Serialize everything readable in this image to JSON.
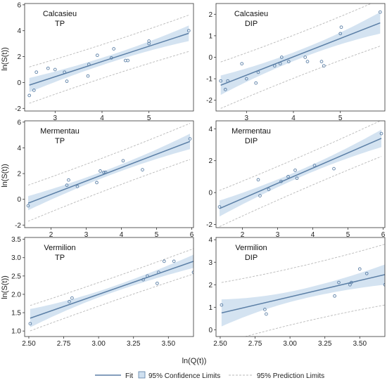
{
  "figure": {
    "shared_ylabel": "ln(S(t))",
    "shared_xlabel": "ln(Q(t))",
    "legend": {
      "placement": "bottom-center",
      "fit_label": "Fit",
      "confidence_label": "95% Confidence Limits",
      "prediction_label": "95% Prediction Limits",
      "colors": {
        "fit": "#5b7fa6",
        "confidence_fill": "#cfe0f0",
        "prediction": "#b8b8b8",
        "marker": "#5b7fa6"
      }
    }
  },
  "chart_data": [
    {
      "type": "scatter",
      "title": "Calcasieu",
      "subtitle": "TP",
      "xlim": [
        2.35,
        5.95
      ],
      "ylim": [
        -2.2,
        6.1
      ],
      "xticks": [
        3,
        4,
        5
      ],
      "yticks": [
        -2,
        0,
        2,
        4,
        6
      ],
      "x": [
        2.45,
        2.55,
        2.6,
        2.85,
        3.0,
        3.2,
        3.25,
        3.7,
        3.72,
        3.9,
        4.2,
        4.25,
        4.5,
        4.55,
        5.0,
        5.0,
        5.85
      ],
      "y": [
        -1.0,
        -0.6,
        0.8,
        1.1,
        1.0,
        0.8,
        0.1,
        0.5,
        1.4,
        2.1,
        1.9,
        2.6,
        1.7,
        1.7,
        3.0,
        3.2,
        4.0
      ],
      "fit": [
        [
          2.45,
          -0.2
        ],
        [
          5.85,
          3.8
        ]
      ],
      "ci_halfwidth": [
        0.55,
        0.28,
        0.6
      ],
      "pi_halfwidth": 1.3
    },
    {
      "type": "scatter",
      "title": "Calcasieu",
      "subtitle": "DIP",
      "xlim": [
        2.35,
        5.95
      ],
      "ylim": [
        -2.5,
        2.5
      ],
      "xticks": [
        3,
        4,
        5
      ],
      "yticks": [
        -2,
        -1,
        0,
        1,
        2
      ],
      "x": [
        2.45,
        2.55,
        2.6,
        2.9,
        3.0,
        3.2,
        3.25,
        3.6,
        3.72,
        3.75,
        3.9,
        4.25,
        4.3,
        4.6,
        4.65,
        5.0,
        5.02,
        5.85
      ],
      "y": [
        -1.1,
        -1.5,
        -1.1,
        -0.3,
        -1.0,
        -1.2,
        -0.7,
        -0.4,
        -0.3,
        0.0,
        -0.2,
        -0.0,
        -0.2,
        -0.2,
        -0.4,
        1.1,
        1.4,
        2.1
      ],
      "fit": [
        [
          2.45,
          -1.3
        ],
        [
          5.85,
          1.6
        ]
      ],
      "ci_halfwidth": [
        0.45,
        0.2,
        0.5
      ],
      "pi_halfwidth": 1.0
    },
    {
      "type": "scatter",
      "title": "Mermentau",
      "subtitle": "TP",
      "xlim": [
        1.25,
        6.05
      ],
      "ylim": [
        -2.2,
        6.1
      ],
      "xticks": [
        2,
        3,
        4,
        5,
        6
      ],
      "yticks": [
        -2,
        0,
        2,
        4,
        6
      ],
      "x": [
        1.35,
        2.45,
        2.5,
        2.75,
        3.3,
        3.4,
        3.5,
        3.55,
        4.05,
        4.6,
        5.95
      ],
      "y": [
        -0.5,
        1.1,
        1.5,
        1.0,
        1.3,
        2.2,
        2.1,
        2.1,
        3.0,
        2.3,
        4.7
      ],
      "fit": [
        [
          1.35,
          -0.3
        ],
        [
          5.95,
          4.5
        ]
      ],
      "ci_halfwidth": [
        0.55,
        0.25,
        0.6
      ],
      "pi_halfwidth": 1.3
    },
    {
      "type": "scatter",
      "title": "Mermentau",
      "subtitle": "DIP",
      "xlim": [
        1.25,
        6.05
      ],
      "ylim": [
        -2.2,
        4.5
      ],
      "xticks": [
        2,
        3,
        4,
        5,
        6
      ],
      "yticks": [
        -2,
        0,
        2,
        4
      ],
      "x": [
        1.35,
        2.45,
        2.5,
        2.75,
        3.1,
        3.3,
        3.5,
        3.55,
        4.05,
        4.6,
        5.95
      ],
      "y": [
        -0.9,
        0.8,
        -0.2,
        0.2,
        0.7,
        1.0,
        1.4,
        0.9,
        1.7,
        1.5,
        3.7
      ],
      "fit": [
        [
          1.35,
          -1.0
        ],
        [
          5.95,
          3.4
        ]
      ],
      "ci_halfwidth": [
        0.5,
        0.22,
        0.55
      ],
      "pi_halfwidth": 1.05
    },
    {
      "type": "scatter",
      "title": "Vermilion",
      "subtitle": "TP",
      "xlim": [
        2.47,
        3.68
      ],
      "ylim": [
        0.85,
        3.55
      ],
      "xticks": [
        2.5,
        2.75,
        3.0,
        3.25,
        3.5
      ],
      "yticks": [
        1.0,
        1.5,
        2.0,
        2.5,
        3.0,
        3.5
      ],
      "x": [
        2.51,
        2.79,
        2.81,
        3.32,
        3.35,
        3.42,
        3.43,
        3.47,
        3.54,
        3.68
      ],
      "y": [
        1.2,
        1.8,
        1.9,
        2.4,
        2.5,
        2.3,
        2.6,
        2.9,
        2.9,
        2.6
      ],
      "fit": [
        [
          2.51,
          1.35
        ],
        [
          3.68,
          2.9
        ]
      ],
      "ci_halfwidth": [
        0.25,
        0.08,
        0.18
      ],
      "pi_halfwidth": 0.32
    },
    {
      "type": "scatter",
      "title": "Vermilion",
      "subtitle": "DIP",
      "xlim": [
        2.47,
        3.68
      ],
      "ylim": [
        -0.3,
        4.1
      ],
      "xticks": [
        2.5,
        2.75,
        3.0,
        3.25,
        3.5
      ],
      "yticks": [
        0,
        1,
        2,
        3,
        4
      ],
      "x": [
        2.51,
        2.82,
        2.83,
        3.32,
        3.35,
        3.43,
        3.44,
        3.5,
        3.55,
        3.68
      ],
      "y": [
        1.1,
        0.9,
        0.7,
        1.5,
        2.1,
        2.0,
        2.1,
        2.7,
        2.5,
        2.0
      ],
      "fit": [
        [
          2.51,
          0.75
        ],
        [
          3.68,
          2.45
        ]
      ],
      "ci_halfwidth": [
        0.6,
        0.22,
        0.45
      ],
      "pi_halfwidth": 1.25
    }
  ]
}
